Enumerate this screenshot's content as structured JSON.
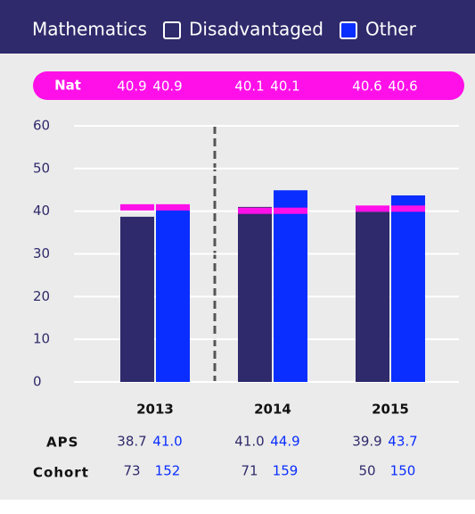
{
  "chart_data": {
    "type": "bar",
    "title": "Mathematics",
    "categories": [
      "2013",
      "2014",
      "2015"
    ],
    "series": [
      {
        "name": "Disadvantaged",
        "color": "#2f2a6b",
        "values": [
          38.7,
          41.0,
          39.9
        ],
        "value_labels": [
          "38.7",
          "41.0",
          "39.9"
        ],
        "cohort": [
          73,
          71,
          50
        ]
      },
      {
        "name": "Other",
        "color": "#0a2eff",
        "values": [
          41.0,
          44.9,
          43.7
        ],
        "value_labels": [
          "41.0",
          "44.9",
          "43.7"
        ],
        "cohort": [
          152,
          159,
          150
        ]
      }
    ],
    "nat": {
      "label": "Nat",
      "color": "#ff10e8",
      "values": [
        40.9,
        40.9,
        40.1,
        40.1,
        40.6,
        40.6
      ]
    },
    "aps_label": "APS",
    "cohort_label": "Cohort",
    "ylim": [
      0,
      60
    ],
    "yticks": [
      0,
      10,
      20,
      30,
      40,
      50,
      60
    ],
    "grid": true
  }
}
